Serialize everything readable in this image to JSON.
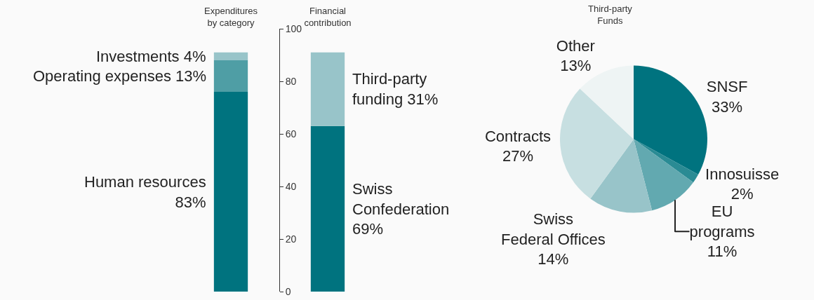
{
  "chart_data": [
    {
      "type": "bar",
      "stacked": true,
      "categories": [
        "Expenditures\nby category",
        "Financial\ncontribution"
      ],
      "series": [
        {
          "name": "Human resources\n83%",
          "color": "#00737f",
          "values": [
            76,
            null
          ]
        },
        {
          "name": "Operating expenses 13%",
          "color": "#4f9ea5",
          "values": [
            12,
            null
          ]
        },
        {
          "name": "Investments 4%",
          "color": "#98c4c9",
          "values": [
            3,
            null
          ]
        },
        {
          "name": "Swiss\nConfederation\n69%",
          "color": "#00737f",
          "values": [
            null,
            63
          ]
        },
        {
          "name": "Third-party\nfunding 31%",
          "color": "#98c4c9",
          "values": [
            null,
            28
          ]
        }
      ],
      "ylim": [
        0,
        100
      ],
      "yticks": [
        0,
        20,
        40,
        60,
        80,
        100
      ]
    },
    {
      "type": "pie",
      "title": "Third-party\nFunds",
      "categories": [
        "SNSF",
        "Innosuisse",
        "EU\nprograms",
        "Swiss\nFederal Offices",
        "Contracts",
        "Other"
      ],
      "values": [
        33,
        2,
        11,
        14,
        27,
        13
      ],
      "value_labels": [
        "33%",
        "2%",
        "11%",
        "14%",
        "27%",
        "13%"
      ],
      "colors": [
        "#00737f",
        "#2a8b94",
        "#62a9b0",
        "#98c4c9",
        "#c7dfe1",
        "#eef4f4"
      ]
    }
  ]
}
